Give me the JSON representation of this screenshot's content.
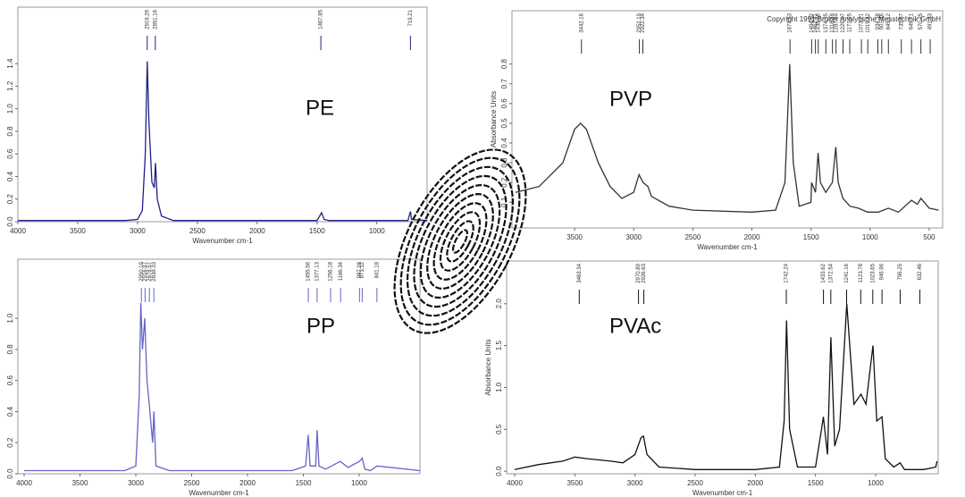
{
  "chart_data": [
    {
      "type": "line",
      "title": "PE",
      "xlabel": "Wavenumber cm-1",
      "color": "#20208a",
      "x": [
        4000,
        3500,
        3100,
        3000,
        2960,
        2935,
        2919,
        2905,
        2880,
        2860,
        2850,
        2835,
        2800,
        2700,
        2000,
        1500,
        1472,
        1462,
        1440,
        1400,
        1000,
        740,
        730,
        719,
        710,
        580
      ],
      "values": [
        0.01,
        0.01,
        0.01,
        0.02,
        0.1,
        0.6,
        1.42,
        0.9,
        0.35,
        0.3,
        0.52,
        0.2,
        0.05,
        0.01,
        0.01,
        0.01,
        0.06,
        0.08,
        0.02,
        0.01,
        0.01,
        0.01,
        0.05,
        0.09,
        0.02,
        0.01
      ],
      "xlim": [
        4000,
        580
      ],
      "ylim": [
        0,
        1.9
      ],
      "xticks": [
        4000,
        3500,
        3000,
        2500,
        2000,
        1500,
        1000
      ],
      "yticks": [
        {
          "value": 0,
          "label": "0.0"
        },
        {
          "value": 0.2,
          "label": "0.2"
        },
        {
          "value": 0.4,
          "label": "0.4"
        },
        {
          "value": 0.6,
          "label": "0.6"
        },
        {
          "value": 0.8,
          "label": "0.8"
        },
        {
          "value": 1,
          "label": "1.0"
        },
        {
          "value": 1.2,
          "label": "1.2"
        },
        {
          "value": 1.4,
          "label": "1.4"
        }
      ],
      "peaks": [
        2919.29,
        2851.16,
        1467.85,
        719.21
      ]
    },
    {
      "type": "line",
      "title": "PP",
      "xlabel": "Wavenumber cm-1",
      "color": "#6464c8",
      "x": [
        4000,
        3500,
        3100,
        3000,
        2970,
        2955,
        2940,
        2920,
        2900,
        2880,
        2868,
        2850,
        2838,
        2820,
        2700,
        2000,
        1600,
        1480,
        1456,
        1440,
        1390,
        1377,
        1360,
        1300,
        1170,
        1100,
        998,
        973,
        950,
        900,
        840,
        456
      ],
      "values": [
        0.02,
        0.02,
        0.02,
        0.05,
        0.5,
        1.1,
        0.8,
        1.0,
        0.6,
        0.45,
        0.35,
        0.2,
        0.4,
        0.05,
        0.02,
        0.02,
        0.02,
        0.05,
        0.25,
        0.05,
        0.05,
        0.28,
        0.05,
        0.03,
        0.08,
        0.04,
        0.08,
        0.1,
        0.03,
        0.02,
        0.05,
        0.02
      ],
      "xlim": [
        4056,
        456
      ],
      "ylim": [
        0,
        1.38
      ],
      "xticks": [
        4000,
        3500,
        3000,
        2500,
        2000,
        1500,
        1000
      ],
      "yticks": [
        {
          "value": 0,
          "label": "0.0"
        },
        {
          "value": 0.2,
          "label": "0.2"
        },
        {
          "value": 0.4,
          "label": "0.4"
        },
        {
          "value": 0.6,
          "label": "0.6"
        },
        {
          "value": 0.8,
          "label": "0.8"
        },
        {
          "value": 1,
          "label": "1.0"
        }
      ],
      "peaks": [
        2950.19,
        2916.97,
        2878.57,
        2838.33,
        1455.56,
        1377.13,
        1256.18,
        1166.34,
        997.28,
        973.12,
        841.18
      ]
    },
    {
      "type": "line",
      "title": "PVP",
      "xlabel": "Wavenumber cm-1",
      "ylabel": "Absorbance Units",
      "annotation": "Copyright 1991 Bruker Analytische Messtechnik GmbH",
      "color": "#333333",
      "x": [
        4000,
        3800,
        3600,
        3500,
        3450,
        3400,
        3300,
        3200,
        3100,
        3000,
        2955,
        2920,
        2880,
        2850,
        2700,
        2500,
        2000,
        1800,
        1720,
        1680,
        1650,
        1600,
        1500,
        1495,
        1462,
        1440,
        1420,
        1375,
        1320,
        1290,
        1270,
        1230,
        1170,
        1100,
        1020,
        930,
        845,
        760,
        650,
        600,
        570,
        500,
        420
      ],
      "values": [
        0.15,
        0.18,
        0.3,
        0.47,
        0.5,
        0.47,
        0.3,
        0.18,
        0.12,
        0.15,
        0.24,
        0.2,
        0.18,
        0.13,
        0.08,
        0.06,
        0.05,
        0.06,
        0.2,
        0.8,
        0.3,
        0.08,
        0.1,
        0.2,
        0.15,
        0.35,
        0.2,
        0.15,
        0.2,
        0.38,
        0.2,
        0.12,
        0.08,
        0.07,
        0.05,
        0.05,
        0.07,
        0.05,
        0.11,
        0.09,
        0.12,
        0.07,
        0.06
      ],
      "xlim": [
        4030,
        386
      ],
      "ylim": [
        -0.03,
        1.07
      ],
      "xticks": [
        3500,
        3000,
        2500,
        2000,
        1500,
        1000,
        500
      ],
      "yticks": [
        0.1,
        0.2,
        0.3,
        0.4,
        0.5,
        0.6,
        0.7,
        0.8
      ],
      "peaks": [
        3442.16,
        2952.19,
        2922.34,
        1677.53,
        1494.62,
        1462.41,
        1438.66,
        1374.35,
        1318.48,
        1287.94,
        1229.17,
        1171.95,
        1073.21,
        1019.42,
        934.38,
        901.46,
        845.12,
        735.87,
        649.71,
        570.25,
        491.33
      ]
    },
    {
      "type": "line",
      "title": "PVAc",
      "xlabel": "Wavenumber cm-1",
      "ylabel": "Absorbance Units",
      "color": "#111111",
      "x": [
        4000,
        3800,
        3600,
        3500,
        3400,
        3200,
        3100,
        3000,
        2950,
        2930,
        2900,
        2800,
        2500,
        2000,
        1800,
        1760,
        1740,
        1715,
        1650,
        1500,
        1450,
        1434,
        1400,
        1372,
        1340,
        1300,
        1240,
        1180,
        1122,
        1080,
        1022,
        990,
        947,
        920,
        850,
        796,
        760,
        600,
        500,
        490
      ],
      "values": [
        0.02,
        0.08,
        0.12,
        0.17,
        0.15,
        0.12,
        0.1,
        0.2,
        0.4,
        0.42,
        0.2,
        0.05,
        0.02,
        0.02,
        0.05,
        0.6,
        1.8,
        0.5,
        0.05,
        0.05,
        0.5,
        0.65,
        0.2,
        1.6,
        0.3,
        0.5,
        2.0,
        0.8,
        0.92,
        0.8,
        1.5,
        0.6,
        0.65,
        0.15,
        0.05,
        0.1,
        0.02,
        0.02,
        0.05,
        0.12
      ],
      "xlim": [
        4067,
        480
      ],
      "ylim": [
        -0.03,
        2.51
      ],
      "xticks": [
        4000,
        3500,
        3000,
        2500,
        2000,
        1500,
        1000
      ],
      "yticks": [
        {
          "value": 0,
          "label": "0.0"
        },
        {
          "value": 0.5,
          "label": "0.5"
        },
        {
          "value": 1,
          "label": "1.0"
        },
        {
          "value": 1.5,
          "label": "1.5"
        },
        {
          "value": 2,
          "label": "2.0"
        }
      ],
      "peaks": [
        3463.34,
        2970.89,
        2926.63,
        1742.24,
        1433.62,
        1372.54,
        1241.16,
        1123.78,
        1023.65,
        946.96,
        796.25,
        632.46
      ]
    }
  ]
}
